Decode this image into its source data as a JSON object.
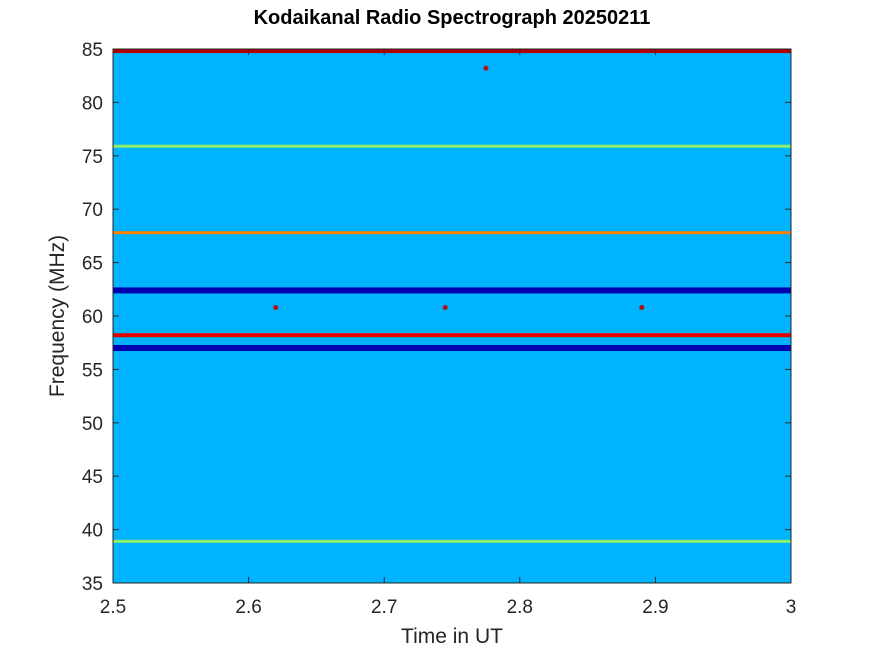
{
  "chart_data": {
    "type": "heatmap",
    "title": "Kodaikanal Radio Spectrograph  20250211",
    "xlabel": "Time in UT",
    "ylabel": "Frequency (MHz)",
    "xlim": [
      2.5,
      3.0
    ],
    "ylim": [
      35,
      85
    ],
    "xticks": [
      "2.5",
      "2.6",
      "2.7",
      "2.8",
      "2.9",
      "3"
    ],
    "yticks": [
      "35",
      "40",
      "45",
      "50",
      "55",
      "60",
      "65",
      "70",
      "75",
      "80",
      "85"
    ],
    "colormap": "jet",
    "background_intensity": 0.3,
    "bands": [
      {
        "freq_mhz": 84.8,
        "kind": "strong-emission",
        "intensity": 0.95
      },
      {
        "freq_mhz": 75.9,
        "kind": "weak-emission",
        "intensity": 0.55
      },
      {
        "freq_mhz": 67.8,
        "kind": "emission",
        "intensity": 0.75
      },
      {
        "freq_mhz": 62.4,
        "kind": "absorption",
        "intensity": 0.05
      },
      {
        "freq_mhz": 58.2,
        "kind": "strong-emission",
        "intensity": 0.9
      },
      {
        "freq_mhz": 57.0,
        "kind": "absorption",
        "intensity": 0.05
      },
      {
        "freq_mhz": 38.9,
        "kind": "weak-emission",
        "intensity": 0.55
      }
    ],
    "spots": [
      {
        "time_ut": 2.62,
        "freq_mhz": 60.8
      },
      {
        "time_ut": 2.745,
        "freq_mhz": 60.8
      },
      {
        "time_ut": 2.89,
        "freq_mhz": 60.8
      },
      {
        "time_ut": 2.775,
        "freq_mhz": 83.2
      }
    ]
  }
}
